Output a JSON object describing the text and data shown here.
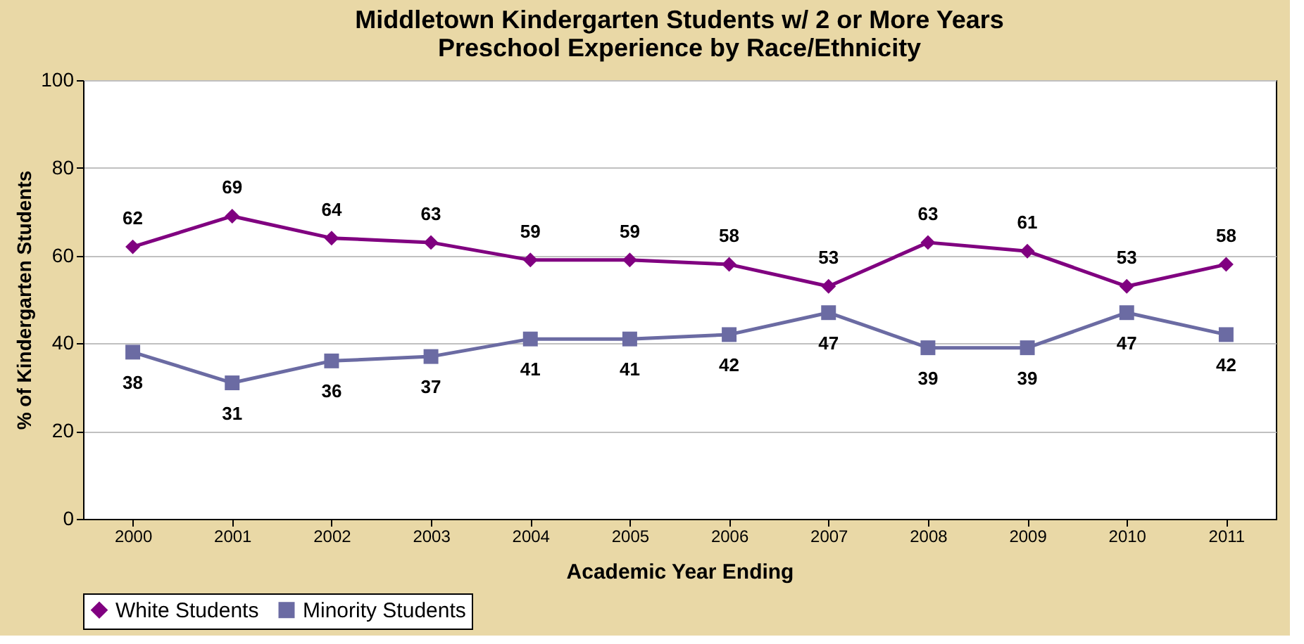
{
  "chart_data": {
    "type": "line",
    "title": "Middletown Kindergarten Students w/ 2 or More Years\nPreschool Experience by Race/Ethnicity",
    "xlabel": "Academic Year Ending",
    "ylabel": "% of Kindergarten Students",
    "categories": [
      "2000",
      "2001",
      "2002",
      "2003",
      "2004",
      "2005",
      "2006",
      "2007",
      "2008",
      "2009",
      "2010",
      "2011"
    ],
    "series": [
      {
        "name": "White Students",
        "color": "#800080",
        "marker": "diamond",
        "values": [
          62,
          69,
          64,
          63,
          59,
          59,
          58,
          53,
          63,
          61,
          53,
          58
        ]
      },
      {
        "name": "Minority Students",
        "color": "#6b6ba3",
        "marker": "square",
        "values": [
          38,
          31,
          36,
          37,
          41,
          41,
          42,
          47,
          39,
          39,
          47,
          42
        ]
      }
    ],
    "ylim": [
      0,
      100
    ],
    "yticks": [
      0,
      20,
      40,
      60,
      80,
      100
    ],
    "grid": "y",
    "legend": "bottom",
    "data_labels": true,
    "line_style": "solid"
  }
}
